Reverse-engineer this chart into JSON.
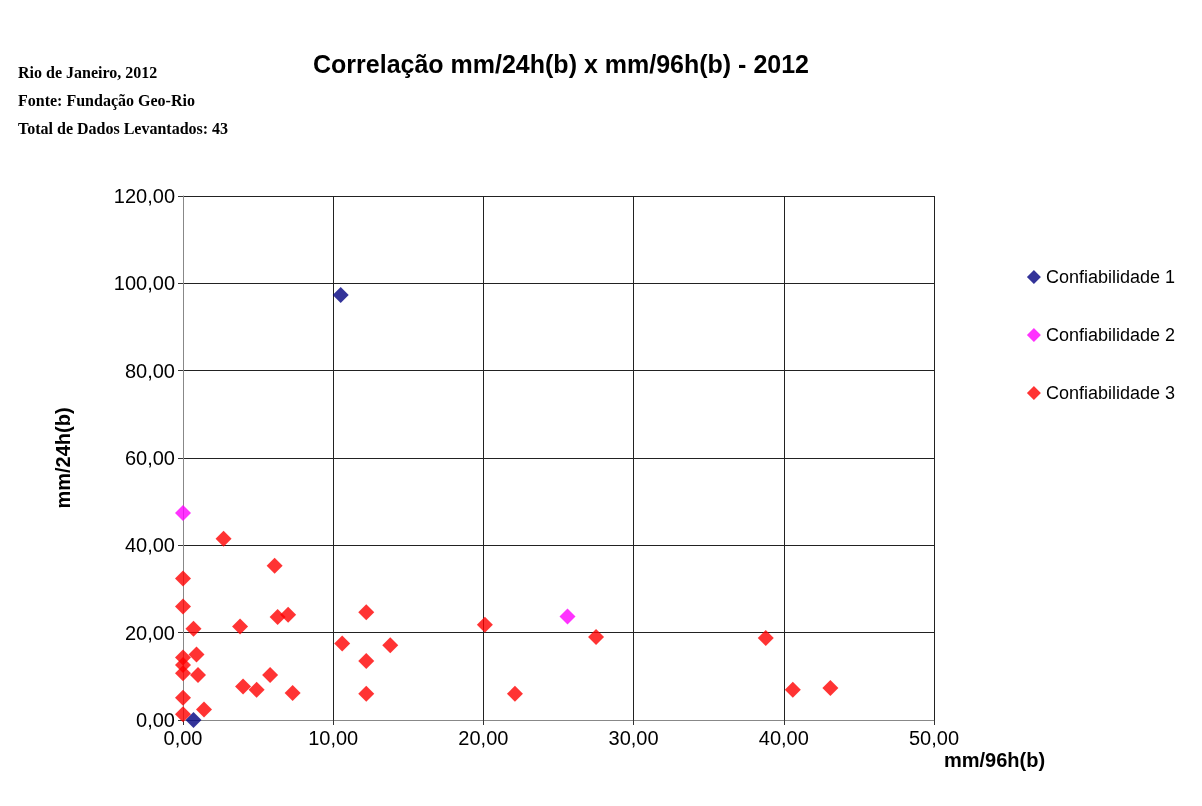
{
  "chart_data": {
    "type": "scatter",
    "title": "Correlação mm/24h(b) x mm/96h(b) - 2012",
    "xlabel": "mm/96h(b)",
    "ylabel": "mm/24h(b)",
    "annotations": [
      "Rio de Janeiro, 2012",
      "Fonte: Fundação Geo-Rio",
      "Total de Dados Levantados: 43"
    ],
    "xlim": [
      0,
      50
    ],
    "xticks": [
      {
        "value": 0,
        "label": "0,00"
      },
      {
        "value": 10,
        "label": "10,00"
      },
      {
        "value": 20,
        "label": "20,00"
      },
      {
        "value": 30,
        "label": "30,00"
      },
      {
        "value": 40,
        "label": "40,00"
      },
      {
        "value": 50,
        "label": "50,00"
      }
    ],
    "ylim": [
      0,
      120
    ],
    "yticks": [
      {
        "value": 0,
        "label": "0,00"
      },
      {
        "value": 20,
        "label": "20,00"
      },
      {
        "value": 40,
        "label": "40,00"
      },
      {
        "value": 60,
        "label": "60,00"
      },
      {
        "value": 80,
        "label": "80,00"
      },
      {
        "value": 100,
        "label": "100,00"
      },
      {
        "value": 120,
        "label": "120,00"
      }
    ],
    "grid": true,
    "legend": "right",
    "marker": "diamond",
    "series": [
      {
        "name": "Confiabilidade 1",
        "color": "#000080",
        "x": [
          10.5,
          0.7
        ],
        "values": [
          97.3,
          0
        ]
      },
      {
        "name": "Confiabilidade 2",
        "color": "#ff00ff",
        "x": [
          0,
          25.6
        ],
        "values": [
          47.4,
          23.7
        ]
      },
      {
        "name": "Confiabilidade 3",
        "color": "#ff0000",
        "x": [
          2.7,
          6.1,
          0,
          0,
          6.3,
          7,
          0.7,
          3.8,
          0,
          0.9,
          0,
          0,
          1,
          4,
          4.9,
          5.8,
          7.3,
          0,
          1.4,
          0,
          12.2,
          10.6,
          13.8,
          12.2,
          12.2,
          20.1,
          27.5,
          22.1,
          38.8,
          40.6,
          43.1
        ],
        "values": [
          41.5,
          35.3,
          32.4,
          26,
          23.6,
          24.1,
          20.9,
          21.4,
          14.3,
          15,
          12.6,
          10.7,
          10.3,
          7.7,
          6.9,
          10.3,
          6.2,
          5.1,
          2.4,
          1.3,
          24.7,
          17.5,
          17.1,
          13.5,
          6,
          21.8,
          19,
          6,
          18.8,
          6.9,
          7.3
        ]
      }
    ]
  }
}
